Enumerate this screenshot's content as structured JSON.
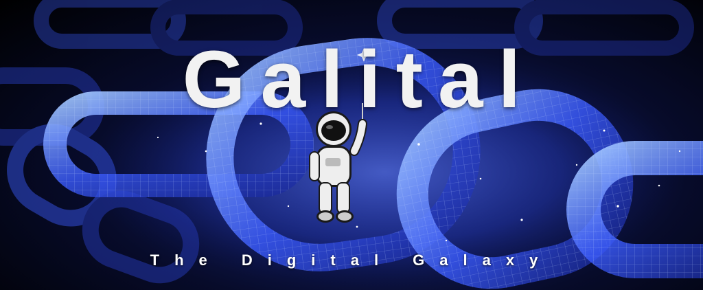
{
  "banner": {
    "title": "Galital",
    "tagline": "The Digital Galaxy"
  },
  "colors": {
    "background": "#000000",
    "chain_glow": "#3b5cff",
    "chain_highlight": "#9fc4ff",
    "title_text": "#f2f2f2"
  },
  "icons": {
    "mascot": "astronaut-icon",
    "decor": "sparkle-icon"
  }
}
